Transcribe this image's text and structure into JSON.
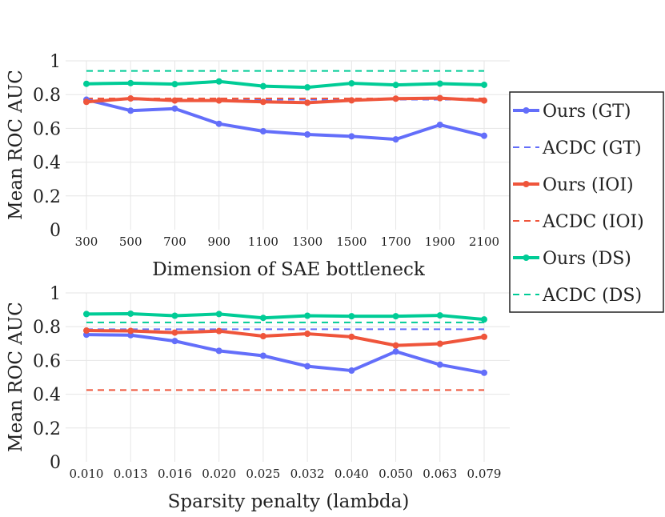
{
  "chart_data": [
    {
      "type": "line",
      "xlabel": "Dimension of SAE bottleneck",
      "ylabel": "Mean ROC AUC",
      "categories": [
        "300",
        "500",
        "700",
        "900",
        "1100",
        "1300",
        "1500",
        "1700",
        "1900",
        "2100"
      ],
      "yticks": [
        "0",
        "0.2",
        "0.4",
        "0.6",
        "0.8",
        "1"
      ],
      "ylim": [
        0,
        1
      ],
      "grid": true,
      "series": [
        {
          "name": "Ours (GT)",
          "color": "#636efa",
          "style": "solid",
          "values": [
            0.77,
            0.705,
            0.717,
            0.627,
            0.583,
            0.564,
            0.553,
            0.535,
            0.621,
            0.556
          ]
        },
        {
          "name": "ACDC (GT)",
          "color": "#636efa",
          "style": "dashed",
          "values": [
            0.77,
            0.77,
            0.77,
            0.77,
            0.77,
            0.77,
            0.77,
            0.77,
            0.77,
            0.77
          ]
        },
        {
          "name": "Ours (IOI)",
          "color": "#ef553b",
          "style": "solid",
          "values": [
            0.757,
            0.777,
            0.765,
            0.765,
            0.757,
            0.752,
            0.766,
            0.776,
            0.779,
            0.765
          ]
        },
        {
          "name": "ACDC (IOI)",
          "color": "#ef553b",
          "style": "dashed",
          "values": [
            0.777,
            0.777,
            0.777,
            0.777,
            0.777,
            0.777,
            0.777,
            0.777,
            0.777,
            0.777
          ]
        },
        {
          "name": "Ours (DS)",
          "color": "#00cc96",
          "style": "solid",
          "values": [
            0.864,
            0.868,
            0.862,
            0.878,
            0.85,
            0.843,
            0.867,
            0.857,
            0.865,
            0.858
          ]
        },
        {
          "name": "ACDC (DS)",
          "color": "#00cc96",
          "style": "dashed",
          "values": [
            0.94,
            0.94,
            0.94,
            0.94,
            0.94,
            0.94,
            0.94,
            0.94,
            0.94,
            0.94
          ]
        }
      ]
    },
    {
      "type": "line",
      "xlabel": "Sparsity penalty (lambda)",
      "ylabel": "Mean ROC AUC",
      "categories": [
        "0.010",
        "0.013",
        "0.016",
        "0.020",
        "0.025",
        "0.032",
        "0.040",
        "0.050",
        "0.063",
        "0.079"
      ],
      "yticks": [
        "0",
        "0.2",
        "0.4",
        "0.6",
        "0.8",
        "1"
      ],
      "ylim": [
        0,
        1
      ],
      "grid": true,
      "series": [
        {
          "name": "Ours (GT)",
          "color": "#636efa",
          "style": "solid",
          "values": [
            0.753,
            0.75,
            0.715,
            0.657,
            0.628,
            0.566,
            0.54,
            0.653,
            0.575,
            0.527
          ]
        },
        {
          "name": "ACDC (GT)",
          "color": "#636efa",
          "style": "dashed",
          "values": [
            0.785,
            0.785,
            0.785,
            0.785,
            0.785,
            0.785,
            0.785,
            0.785,
            0.785,
            0.785
          ]
        },
        {
          "name": "Ours (IOI)",
          "color": "#ef553b",
          "style": "solid",
          "values": [
            0.777,
            0.775,
            0.765,
            0.774,
            0.744,
            0.758,
            0.74,
            0.689,
            0.699,
            0.74
          ]
        },
        {
          "name": "ACDC (IOI)",
          "color": "#ef553b",
          "style": "dashed",
          "values": [
            0.425,
            0.425,
            0.425,
            0.425,
            0.425,
            0.425,
            0.425,
            0.425,
            0.425,
            0.425
          ]
        },
        {
          "name": "Ours (DS)",
          "color": "#00cc96",
          "style": "solid",
          "values": [
            0.875,
            0.877,
            0.865,
            0.875,
            0.852,
            0.865,
            0.862,
            0.862,
            0.867,
            0.843
          ]
        },
        {
          "name": "ACDC (DS)",
          "color": "#00cc96",
          "style": "dashed",
          "values": [
            0.825,
            0.825,
            0.825,
            0.825,
            0.825,
            0.825,
            0.825,
            0.825,
            0.825,
            0.825
          ]
        }
      ]
    }
  ],
  "legend": {
    "position": "right",
    "items": [
      {
        "label": "Ours (GT)",
        "color": "#636efa",
        "style": "solid"
      },
      {
        "label": "ACDC (GT)",
        "color": "#636efa",
        "style": "dashed"
      },
      {
        "label": "Ours (IOI)",
        "color": "#ef553b",
        "style": "solid"
      },
      {
        "label": "ACDC (IOI)",
        "color": "#ef553b",
        "style": "dashed"
      },
      {
        "label": "Ours (DS)",
        "color": "#00cc96",
        "style": "solid"
      },
      {
        "label": "ACDC (DS)",
        "color": "#00cc96",
        "style": "dashed"
      }
    ]
  }
}
